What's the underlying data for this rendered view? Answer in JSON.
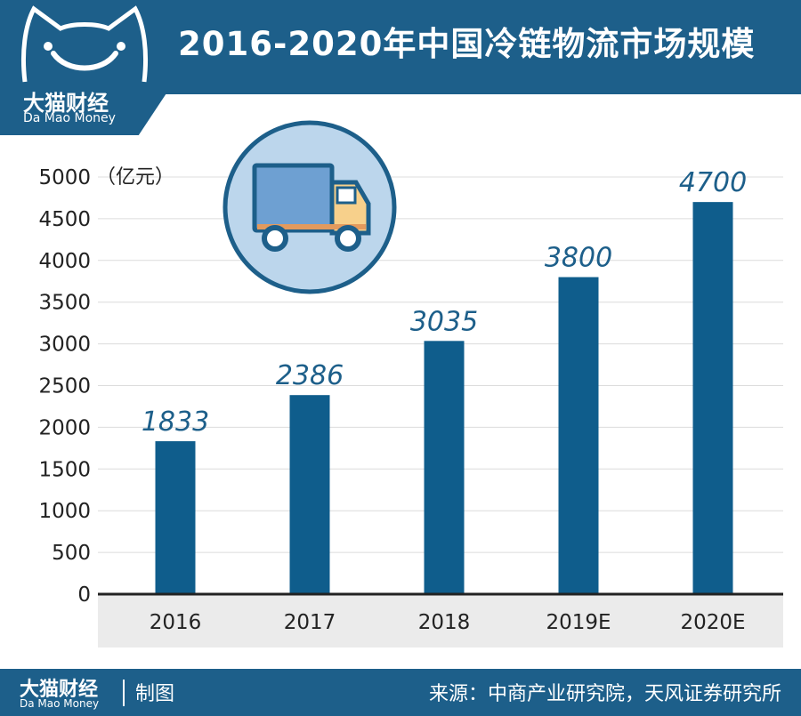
{
  "brand": {
    "name": "大猫财经",
    "sub": "Da Mao Money"
  },
  "footer": {
    "made_label": "制图",
    "source": "来源：中商产业研究院，天风证券研究所"
  },
  "icons": {
    "logo": "cat-face-icon",
    "illustration": "truck-icon"
  },
  "colors": {
    "bar": "#0f5d8c",
    "header": "#1d5f8a",
    "label": "#1d5f8a",
    "axis_band": "#ebebeb"
  },
  "chart_data": {
    "type": "bar",
    "title": "2016-2020年中国冷链物流市场规模",
    "unit_label": "（亿元）",
    "categories": [
      "2016",
      "2017",
      "2018",
      "2019E",
      "2020E"
    ],
    "values": [
      1833,
      2386,
      3035,
      3800,
      4700
    ],
    "value_labels": [
      "1833",
      "2386",
      "3035",
      "3800",
      "4700"
    ],
    "ylim": [
      0,
      5000
    ],
    "yticks": [
      0,
      500,
      1000,
      1500,
      2000,
      2500,
      3000,
      3500,
      4000,
      4500,
      5000
    ],
    "grid": true,
    "legend": "none"
  }
}
